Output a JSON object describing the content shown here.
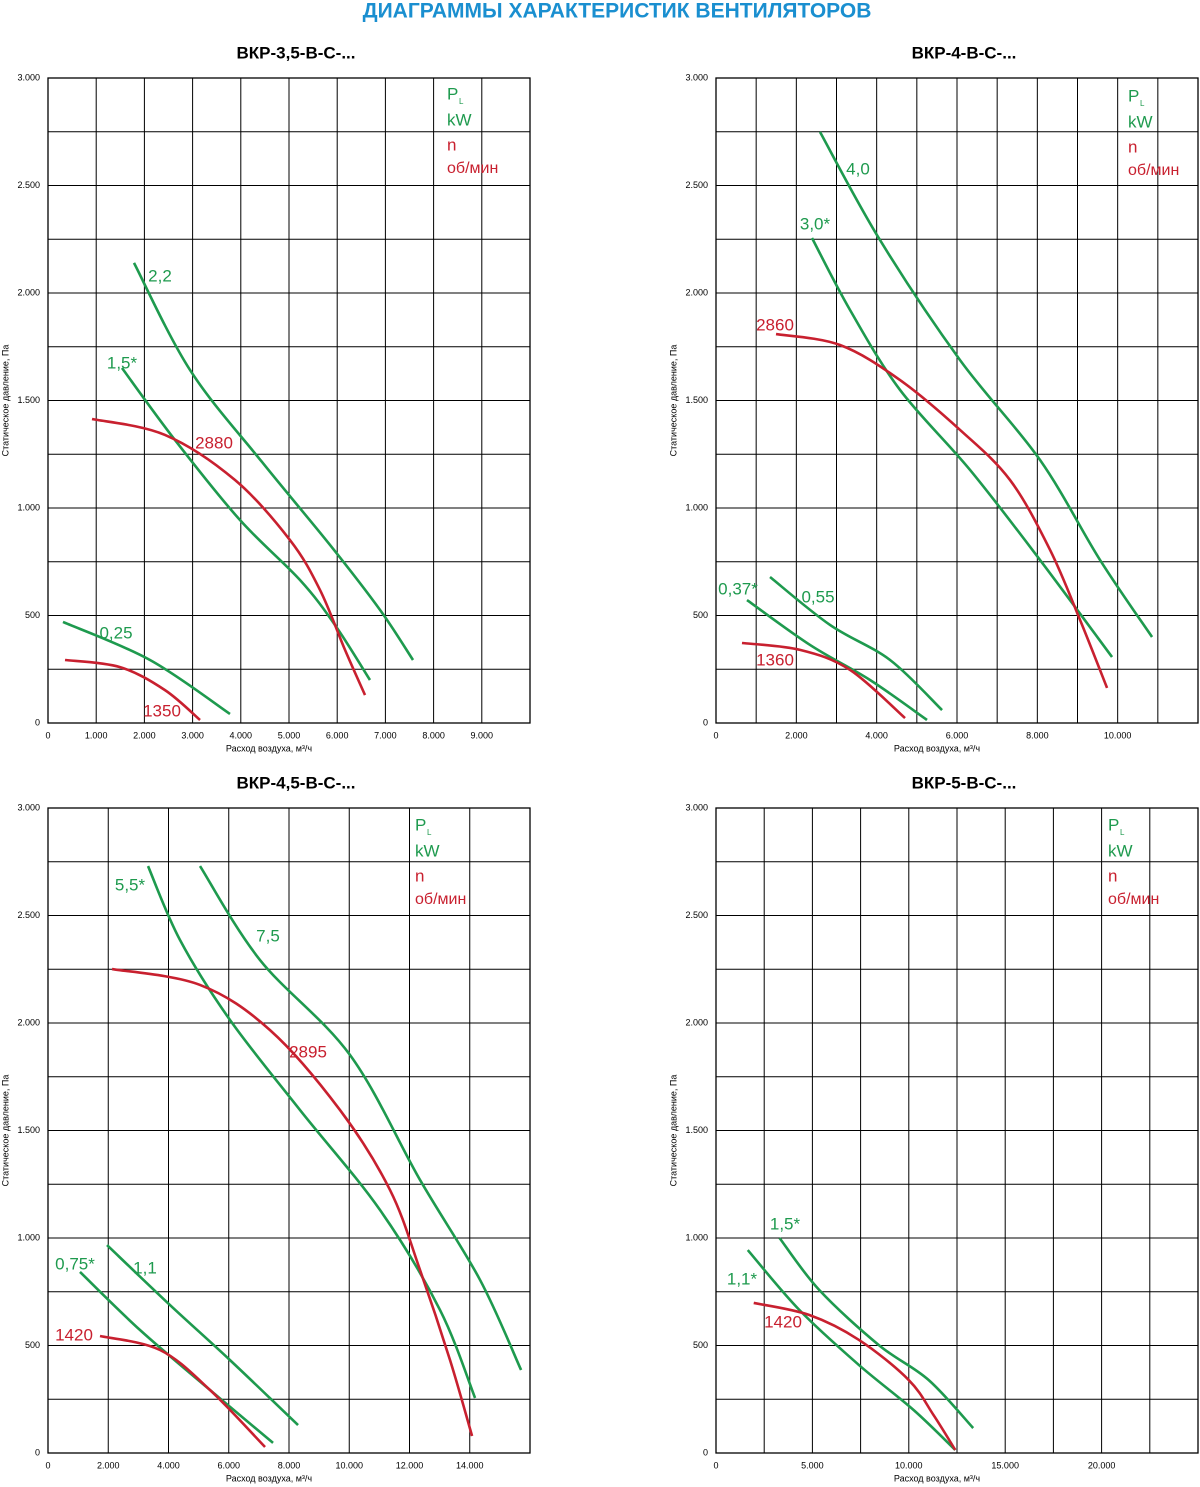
{
  "title": "ДИАГРАММЫ ХАРАКТЕРИСТИК ВЕНТИЛЯТОРОВ",
  "chart_data": [
    {
      "type": "line",
      "title": "ВКР-3,5-В-С-...",
      "x_label": "Расход воздуха, м³/ч",
      "y_label": "Статическое давление, Па",
      "legend": {
        "power_symbol": "P",
        "power_subscript": "L",
        "power_unit": "kW",
        "speed_symbol": "n",
        "speed_unit": "об/мин"
      },
      "xlim": [
        0,
        10000
      ],
      "ylim": [
        0,
        3000
      ],
      "xticks": [
        0,
        {
          "value": 1000,
          "label": "1.000"
        },
        {
          "value": 2000,
          "label": "2.000"
        },
        {
          "value": 3000,
          "label": "3.000"
        },
        {
          "value": 4000,
          "label": "4.000"
        },
        {
          "value": 5000,
          "label": "5.000"
        },
        {
          "value": 6000,
          "label": "6.000"
        },
        {
          "value": 7000,
          "label": "7.000"
        },
        {
          "value": 8000,
          "label": "8.000"
        },
        {
          "value": 9000,
          "label": "9.000"
        }
      ],
      "xminor": [],
      "yticks": [
        0,
        500,
        {
          "value": 1000,
          "label": "1.000"
        },
        {
          "value": 1500,
          "label": "1.500"
        },
        {
          "value": 2000,
          "label": "2.000"
        },
        {
          "value": 2500,
          "label": "2.500"
        },
        {
          "value": 3000,
          "label": "3.000"
        }
      ],
      "yminor": [
        250,
        750,
        1250,
        1750,
        2250,
        2750
      ],
      "grid": true,
      "series": [
        {
          "name": "2,2",
          "color": "#1e9a4e",
          "x": [
            1784,
            2946,
            4440,
            5851,
            6888,
            7573
          ],
          "values": [
            2140,
            1642,
            1214,
            828,
            526,
            293
          ]
        },
        {
          "name": "1,5*",
          "color": "#1e9a4e",
          "x": [
            1535,
            2635,
            3983,
            5228,
            5954,
            6680
          ],
          "values": [
            1651,
            1316,
            944,
            665,
            456,
            200
          ]
        },
        {
          "name": "2880",
          "color": "#c8202f",
          "x": [
            913,
            2427,
            3880,
            5020,
            5643,
            6162,
            6577
          ],
          "values": [
            1414,
            1340,
            1130,
            851,
            619,
            340,
            130
          ]
        },
        {
          "name": "0,25",
          "color": "#1e9a4e",
          "x": [
            311,
            2116,
            3776
          ],
          "values": [
            470,
            293,
            42
          ]
        },
        {
          "name": "1350",
          "color": "#c8202f",
          "x": [
            353,
            1494,
            2427,
            3154
          ],
          "values": [
            293,
            260,
            153,
            14
          ]
        }
      ]
    },
    {
      "type": "line",
      "title": "ВКР-4-В-С-...",
      "x_label": "Расход воздуха, м³/ч",
      "y_label": "Статическое давление, Па",
      "legend": {
        "power_symbol": "P",
        "power_subscript": "L",
        "power_unit": "kW",
        "speed_symbol": "n",
        "speed_unit": "об/мин"
      },
      "xlim": [
        0,
        12000
      ],
      "ylim": [
        0,
        3000
      ],
      "xticks": [
        0,
        {
          "value": 2000,
          "label": "2.000"
        },
        {
          "value": 4000,
          "label": "4.000"
        },
        {
          "value": 6000,
          "label": "6.000"
        },
        {
          "value": 8000,
          "label": "8.000"
        },
        {
          "value": 10000,
          "label": "10.000"
        }
      ],
      "xminor": [
        1000,
        3000,
        5000,
        7000,
        9000,
        11000
      ],
      "yticks": [
        0,
        500,
        {
          "value": 1000,
          "label": "1.000"
        },
        {
          "value": 1500,
          "label": "1.500"
        },
        {
          "value": 2000,
          "label": "2.000"
        },
        {
          "value": 2500,
          "label": "2.500"
        },
        {
          "value": 3000,
          "label": "3.000"
        }
      ],
      "yminor": [
        250,
        750,
        1250,
        1750,
        2250,
        2750
      ],
      "grid": true,
      "series": [
        {
          "name": "4,0",
          "color": "#1e9a4e",
          "x": [
            2590,
            4084,
            6076,
            8068,
            9562,
            10856
          ],
          "values": [
            2749,
            2246,
            1688,
            1223,
            758,
            400
          ]
        },
        {
          "name": "3,0*",
          "color": "#1e9a4e",
          "x": [
            2390,
            3337,
            4582,
            6325,
            8068,
            9860
          ],
          "values": [
            2256,
            1921,
            1549,
            1177,
            758,
            307
          ]
        },
        {
          "name": "2860",
          "color": "#c8202f",
          "x": [
            1494,
            3088,
            4582,
            6076,
            7321,
            8317,
            9064,
            9736
          ],
          "values": [
            1809,
            1758,
            1595,
            1363,
            1130,
            805,
            479,
            163
          ]
        },
        {
          "name": "0,55",
          "color": "#1e9a4e",
          "x": [
            1345,
            2839,
            4333,
            5628
          ],
          "values": [
            679,
            456,
            293,
            60
          ]
        },
        {
          "name": "0,37*",
          "color": "#1e9a4e",
          "x": [
            772,
            2341,
            3835,
            5254
          ],
          "values": [
            572,
            363,
            200,
            14
          ]
        },
        {
          "name": "1360",
          "color": "#c8202f",
          "x": [
            647,
            2092,
            3337,
            4706
          ],
          "values": [
            372,
            340,
            247,
            23
          ]
        }
      ]
    },
    {
      "type": "line",
      "title": "ВКР-4,5-В-С-...",
      "x_label": "Расход воздуха, м³/ч",
      "y_label": "Статическое давление, Па",
      "legend": {
        "power_symbol": "P",
        "power_subscript": "L",
        "power_unit": "kW",
        "speed_symbol": "n",
        "speed_unit": "об/мин"
      },
      "xlim": [
        0,
        16000
      ],
      "ylim": [
        0,
        3000
      ],
      "xticks": [
        0,
        {
          "value": 2000,
          "label": "2.000"
        },
        {
          "value": 4000,
          "label": "4.000"
        },
        {
          "value": 6000,
          "label": "6.000"
        },
        {
          "value": 8000,
          "label": "8.000"
        },
        {
          "value": 10000,
          "label": "10.000"
        },
        {
          "value": 12000,
          "label": "12.000"
        },
        {
          "value": 14000,
          "label": "14.000"
        }
      ],
      "xminor": [],
      "yticks": [
        0,
        500,
        {
          "value": 1000,
          "label": "1.000"
        },
        {
          "value": 1500,
          "label": "1.500"
        },
        {
          "value": 2000,
          "label": "2.000"
        },
        {
          "value": 2500,
          "label": "2.500"
        },
        {
          "value": 3000,
          "label": "3.000"
        }
      ],
      "yminor": [
        250,
        750,
        1250,
        1750,
        2250,
        2750
      ],
      "grid": true,
      "series": [
        {
          "name": "7,5",
          "color": "#1e9a4e",
          "x": [
            5046,
            7038,
            10026,
            12350,
            14342,
            15704
          ],
          "values": [
            2730,
            2293,
            1851,
            1270,
            805,
            386
          ]
        },
        {
          "name": "5,5*",
          "color": "#1e9a4e",
          "x": [
            3320,
            4382,
            6042,
            8366,
            11022,
            13014,
            14176
          ],
          "values": [
            2730,
            2386,
            2014,
            1595,
            1130,
            665,
            256
          ]
        },
        {
          "name": "2895",
          "color": "#c8202f",
          "x": [
            2125,
            5046,
            7370,
            9694,
            11354,
            12350,
            13346,
            14077
          ],
          "values": [
            2251,
            2177,
            1967,
            1595,
            1223,
            851,
            432,
            79
          ]
        },
        {
          "name": "1,1",
          "color": "#1e9a4e",
          "x": [
            1959,
            4050,
            6042,
            8300
          ],
          "values": [
            967,
            688,
            432,
            130
          ]
        },
        {
          "name": "0,75*",
          "color": "#1e9a4e",
          "x": [
            1062,
            3054,
            5378,
            7470
          ],
          "values": [
            842,
            572,
            293,
            47
          ]
        },
        {
          "name": "1420",
          "color": "#c8202f",
          "x": [
            1726,
            3718,
            5378,
            7204
          ],
          "values": [
            544,
            479,
            293,
            28
          ]
        }
      ]
    },
    {
      "type": "line",
      "title": "ВКР-5-В-С-...",
      "x_label": "Расход воздуха, м³/ч",
      "y_label": "Статическое давление, Па",
      "legend": {
        "power_symbol": "P",
        "power_subscript": "L",
        "power_unit": "kW",
        "speed_symbol": "n",
        "speed_unit": "об/мин"
      },
      "xlim": [
        0,
        25000
      ],
      "ylim": [
        0,
        3000
      ],
      "xticks": [
        0,
        {
          "value": 5000,
          "label": "5.000"
        },
        {
          "value": 10000,
          "label": "10.000"
        },
        {
          "value": 15000,
          "label": "15.000"
        },
        {
          "value": 20000,
          "label": "20.000"
        }
      ],
      "xminor": [
        2500,
        7500,
        12500,
        17500,
        22500
      ],
      "yticks": [
        0,
        500,
        {
          "value": 1000,
          "label": "1.000"
        },
        {
          "value": 1500,
          "label": "1.500"
        },
        {
          "value": 2000,
          "label": "2.000"
        },
        {
          "value": 2500,
          "label": "2.500"
        },
        {
          "value": 3000,
          "label": "3.000"
        }
      ],
      "yminor": [
        250,
        750,
        1250,
        1750,
        2250,
        2750
      ],
      "grid": true,
      "series": [
        {
          "name": "1,5*",
          "color": "#1e9a4e",
          "x": [
            3296,
            5356,
            8446,
            11021,
            13339
          ],
          "values": [
            1000,
            758,
            502,
            340,
            116
          ]
        },
        {
          "name": "1,1*",
          "color": "#1e9a4e",
          "x": [
            1648,
            4326,
            7416,
            10249,
            12412
          ],
          "values": [
            944,
            665,
            409,
            200,
            14
          ]
        },
        {
          "name": "1420",
          "color": "#c8202f",
          "x": [
            1957,
            4841,
            7416,
            9991,
            11279,
            12412
          ],
          "values": [
            698,
            642,
            526,
            340,
            177,
            14
          ]
        }
      ]
    }
  ]
}
